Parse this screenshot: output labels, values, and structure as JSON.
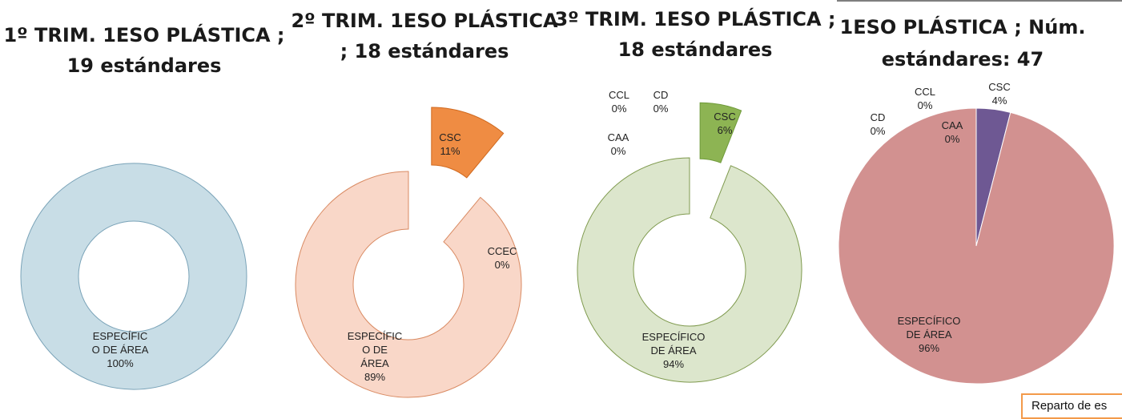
{
  "callout_text": "Reparto de es",
  "chart_data": [
    {
      "type": "pie",
      "variant": "donut",
      "title": "1º TRIM. 1ESO PLÁSTICA ; 19 estándares",
      "title_lines": [
        "1º TRIM. 1ESO PLÁSTICA ;",
        "19 estándares"
      ],
      "slices": [
        {
          "label": "ESPECÍFICO DE ÁREA",
          "label_lines": [
            "ESPECÍFIC",
            "O DE ÁREA",
            "100%"
          ],
          "value": 100,
          "percent": "100%",
          "color": "#c8dde6",
          "stroke": "#7aa3b8"
        }
      ]
    },
    {
      "type": "pie",
      "variant": "donut",
      "title": "2º TRIM. 1ESO PLÁSTICA ; 18 estándares",
      "title_lines": [
        "2º TRIM. 1ESO PLÁSTICA",
        "; 18 estándares"
      ],
      "slices": [
        {
          "label": "CSC",
          "label_lines": [
            "CSC",
            "11%"
          ],
          "value": 11,
          "percent": "11%",
          "color": "#ef8c43",
          "stroke": "#d06a20"
        },
        {
          "label": "CCEC",
          "label_lines": [
            "CCEC",
            "0%"
          ],
          "value": 0,
          "percent": "0%",
          "color": "#c0c0c0",
          "stroke": "#999999"
        },
        {
          "label": "ESPECÍFICO DE ÁREA",
          "label_lines": [
            "ESPECÍFIC",
            "O DE",
            "ÁREA",
            "89%"
          ],
          "value": 89,
          "percent": "89%",
          "color": "#f9d7c8",
          "stroke": "#d98a62"
        }
      ]
    },
    {
      "type": "pie",
      "variant": "donut",
      "title": "3º TRIM. 1ESO PLÁSTICA ; 18 estándares",
      "title_lines": [
        "3º TRIM. 1ESO PLÁSTICA ;",
        "18 estándares"
      ],
      "slices": [
        {
          "label": "CSC",
          "label_lines": [
            "CSC",
            "6%"
          ],
          "value": 6,
          "percent": "6%",
          "color": "#8db453",
          "stroke": "#6f9a3a"
        },
        {
          "label": "ESPECÍFICO DE ÁREA",
          "label_lines": [
            "ESPECÍFICO",
            "DE ÁREA",
            "94%"
          ],
          "value": 94,
          "percent": "94%",
          "color": "#dce6cc",
          "stroke": "#7f9a4e"
        },
        {
          "label": "CCL",
          "label_lines": [
            "CCL",
            "0%"
          ],
          "value": 0,
          "percent": "0%",
          "color": "#c0c0c0",
          "stroke": "#999999"
        },
        {
          "label": "CD",
          "label_lines": [
            "CD",
            "0%"
          ],
          "value": 0,
          "percent": "0%",
          "color": "#c0c0c0",
          "stroke": "#999999"
        },
        {
          "label": "CAA",
          "label_lines": [
            "CAA",
            "0%"
          ],
          "value": 0,
          "percent": "0%",
          "color": "#c0c0c0",
          "stroke": "#999999"
        }
      ]
    },
    {
      "type": "pie",
      "variant": "pie",
      "title": "1ESO PLÁSTICA ; Núm. estándares: 47",
      "title_lines": [
        "1ESO PLÁSTICA ; Núm.",
        "estándares: 47"
      ],
      "slices": [
        {
          "label": "CSC",
          "label_lines": [
            "CSC",
            "4%"
          ],
          "value": 4,
          "percent": "4%",
          "color": "#6e5893",
          "stroke": "#ffffff"
        },
        {
          "label": "ESPECÍFICO DE ÁREA",
          "label_lines": [
            "ESPECÍFICO",
            "DE ÁREA",
            "96%"
          ],
          "value": 96,
          "percent": "96%",
          "color": "#d29190",
          "stroke": "#ffffff"
        },
        {
          "label": "CD",
          "label_lines": [
            "CD",
            "0%"
          ],
          "value": 0,
          "percent": "0%",
          "color": "#c0c0c0",
          "stroke": "#999999"
        },
        {
          "label": "CCL",
          "label_lines": [
            "CCL",
            "0%"
          ],
          "value": 0,
          "percent": "0%",
          "color": "#c0c0c0",
          "stroke": "#999999"
        },
        {
          "label": "CAA",
          "label_lines": [
            "CAA",
            "0%"
          ],
          "value": 0,
          "percent": "0%",
          "color": "#c0c0c0",
          "stroke": "#999999"
        }
      ]
    }
  ]
}
